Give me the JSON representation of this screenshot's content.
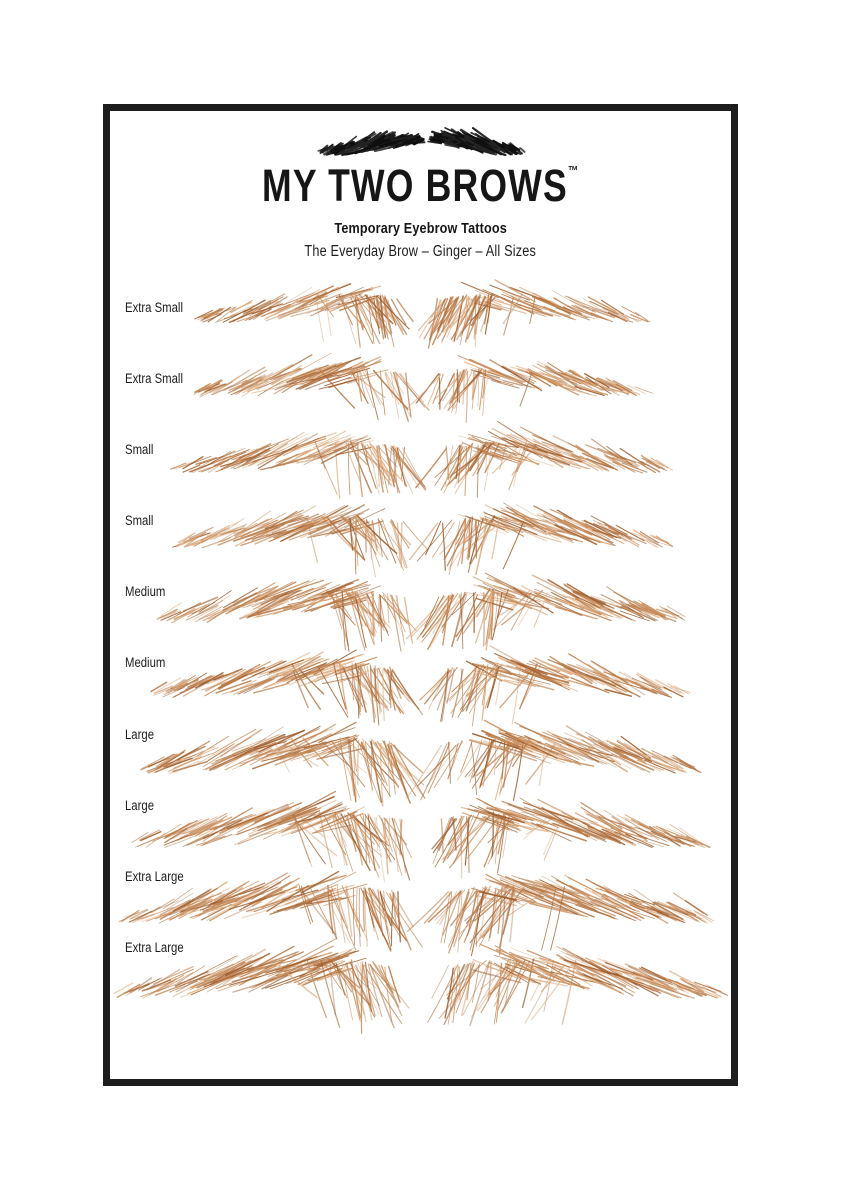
{
  "brand": {
    "logo_title": "MY TWO BROWS",
    "trademark_symbol": "™",
    "tagline": "Temporary Eyebrow Tattoos",
    "product_line": "The Everyday Brow – Ginger – All Sizes"
  },
  "rows": [
    {
      "label": "Extra Small"
    },
    {
      "label": "Extra Small"
    },
    {
      "label": "Small"
    },
    {
      "label": "Small"
    },
    {
      "label": "Medium"
    },
    {
      "label": "Medium"
    },
    {
      "label": "Large"
    },
    {
      "label": "Large"
    },
    {
      "label": "Extra Large"
    },
    {
      "label": "Extra Large"
    }
  ],
  "icons": {
    "logo_left": "logo-eyebrow-left-icon",
    "logo_right": "logo-eyebrow-right-icon"
  },
  "colors": {
    "frame_border": "#1d1d1d",
    "text": "#161616",
    "logo_brow_black": "#0f0f0f",
    "logo_brow_black_soft": "#242424",
    "ginger_dark": "#9e5c2b",
    "ginger_mid": "#ba7a46",
    "ginger_warm": "#cb9160",
    "ginger_light": "#dfae82",
    "background": "#ffffff"
  }
}
